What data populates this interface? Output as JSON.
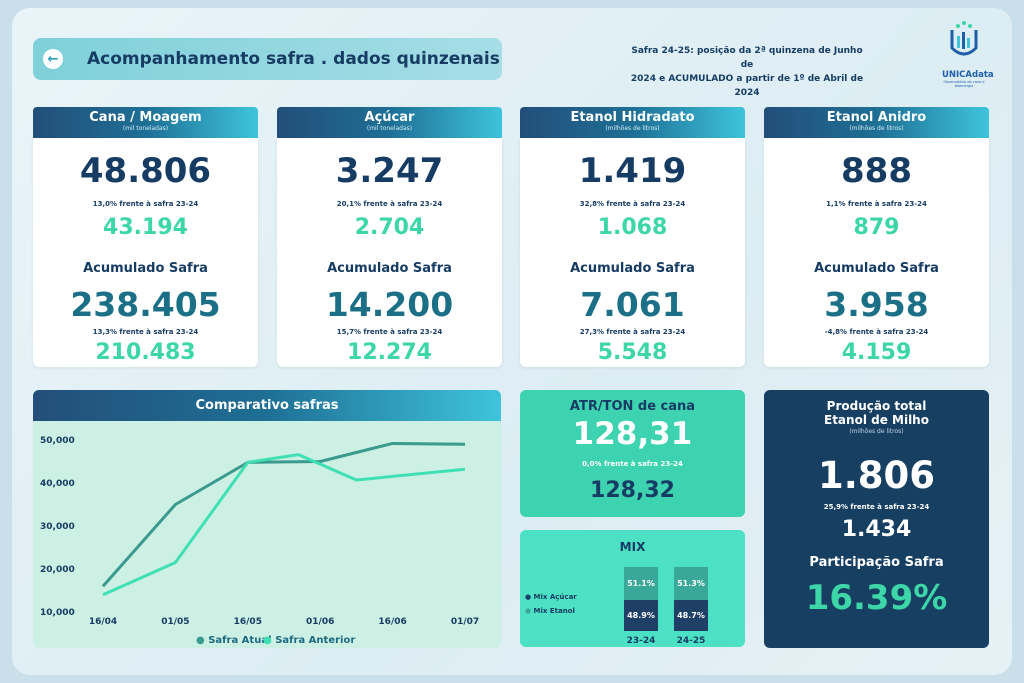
{
  "header": {
    "title": "Acompanhamento safra  .  dados quinzenais",
    "back_icon": "arrow-left-icon",
    "subtitle_line1": "Safra 24-25: posição da 2ª quinzena de Junho de",
    "subtitle_line2": "2024 e ACUMULADO a partir de 1º de Abril de 2024",
    "logo_text": "UNICAdata",
    "logo_sub": "Observatório da cana e bioenergia"
  },
  "cards": [
    {
      "title": "Cana / Moagem",
      "unit": "(mil toneladas)",
      "current": "48.806",
      "current_note": "13,0% frente à safra 23-24",
      "previous": "43.194",
      "acc_label": "Acumulado Safra",
      "acc_current": "238.405",
      "acc_note": "13,3% frente à safra 23-24",
      "acc_previous": "210.483"
    },
    {
      "title": "Açúcar",
      "unit": "(mil toneladas)",
      "current": "3.247",
      "current_note": "20,1% frente à safra 23-24",
      "previous": "2.704",
      "acc_label": "Acumulado Safra",
      "acc_current": "14.200",
      "acc_note": "15,7% frente à safra 23-24",
      "acc_previous": "12.274"
    },
    {
      "title": "Etanol Hidradato",
      "unit": "(milhões de litros)",
      "current": "1.419",
      "current_note": "32,8% frente à safra 23-24",
      "previous": "1.068",
      "acc_label": "Acumulado Safra",
      "acc_current": "7.061",
      "acc_note": "27,3% frente à safra 23-24",
      "acc_previous": "5.548"
    },
    {
      "title": "Etanol Anidro",
      "unit": "(milhões de litros)",
      "current": "888",
      "current_note": "1,1% frente à safra 23-24",
      "previous": "879",
      "acc_label": "Acumulado Safra",
      "acc_current": "3.958",
      "acc_note": "-4,8% frente à safra 23-24",
      "acc_previous": "4.159"
    }
  ],
  "chart_data": {
    "type": "line",
    "title": "Comparativo safras",
    "categories": [
      "16/04",
      "01/05",
      "16/05",
      "01/06",
      "16/06",
      "01/07"
    ],
    "y_tick_labels": [
      "50,000",
      "40,000",
      "30,000",
      "20,000",
      "10,000"
    ],
    "y_ticks": [
      50000,
      40000,
      30000,
      20000,
      10000
    ],
    "ylim": [
      10000,
      50000
    ],
    "series": [
      {
        "name": "Safra Atual",
        "color": "#3a9a8d",
        "x": [
          0,
          1,
          2,
          3,
          4,
          5
        ],
        "values": [
          16000,
          35000,
          44800,
          45000,
          49200,
          49000
        ]
      },
      {
        "name": "Safra Anterior",
        "color": "#3fe0b3",
        "x": [
          0,
          1,
          2,
          2.7,
          3.5,
          5
        ],
        "values": [
          14000,
          21500,
          44800,
          46600,
          40700,
          43200
        ]
      }
    ]
  },
  "atr": {
    "title": "ATR/TON de cana",
    "current": "128,31",
    "note": "0,0% frente à safra 23-24",
    "previous": "128,32"
  },
  "mix": {
    "title": "MIX",
    "legend_acucar": "Mix Açúcar",
    "legend_etanol": "Mix Etanol",
    "color_acucar": "#3aa898",
    "color_etanol": "#1e3f66",
    "columns": [
      {
        "year": "23-24",
        "acucar": "51.1%",
        "etanol": "48.9%",
        "acucar_value": 51.1,
        "etanol_value": 48.9
      },
      {
        "year": "24-25",
        "acucar": "51.3%",
        "etanol": "48.7%",
        "acucar_value": 51.3,
        "etanol_value": 48.7
      }
    ]
  },
  "milho": {
    "title_line1": "Produção total",
    "title_line2": "Etanol de Milho",
    "unit": "(milhões de litros)",
    "current": "1.806",
    "note": "25,9% frente à safra 23-24",
    "previous": "1.434",
    "participation_label": "Participação Safra",
    "participation_value": "16.39%"
  }
}
